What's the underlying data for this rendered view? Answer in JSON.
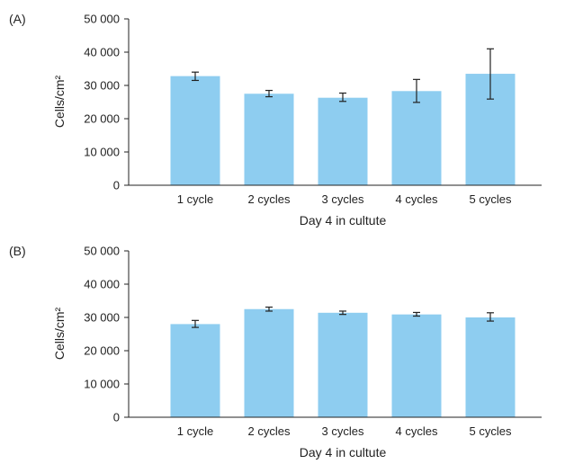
{
  "chart_data": [
    {
      "type": "bar",
      "panel_label": "(A)",
      "categories": [
        "1 cycle",
        "2 cycles",
        "3 cycles",
        "4 cycles",
        "5 cycles"
      ],
      "values": [
        32800,
        27500,
        26300,
        28300,
        33500
      ],
      "error_low": [
        31500,
        26600,
        25200,
        24900,
        25900
      ],
      "error_high": [
        34000,
        28500,
        27700,
        31800,
        41000
      ],
      "xlabel": "Day 4 in cultute",
      "ylabel": "Cells/cm²",
      "ylim": [
        0,
        50000
      ],
      "yticks": [
        0,
        10000,
        20000,
        30000,
        40000,
        50000
      ],
      "ytick_labels": [
        "0",
        "10 000",
        "20 000",
        "30 000",
        "40 000",
        "50 000"
      ],
      "bar_color": "#8ecdf0",
      "grid": false
    },
    {
      "type": "bar",
      "panel_label": "(B)",
      "categories": [
        "1 cycle",
        "2 cycles",
        "3 cycles",
        "4 cycles",
        "5 cycles"
      ],
      "values": [
        28000,
        32500,
        31400,
        30900,
        30000
      ],
      "error_low": [
        27000,
        31900,
        30900,
        30400,
        28900
      ],
      "error_high": [
        29100,
        33100,
        31900,
        31500,
        31400
      ],
      "xlabel": "Day 4 in cultute",
      "ylabel": "Cells/cm²",
      "ylim": [
        0,
        50000
      ],
      "yticks": [
        0,
        10000,
        20000,
        30000,
        40000,
        50000
      ],
      "ytick_labels": [
        "0",
        "10 000",
        "20 000",
        "30 000",
        "40 000",
        "50 000"
      ],
      "bar_color": "#8ecdf0",
      "grid": false
    }
  ]
}
